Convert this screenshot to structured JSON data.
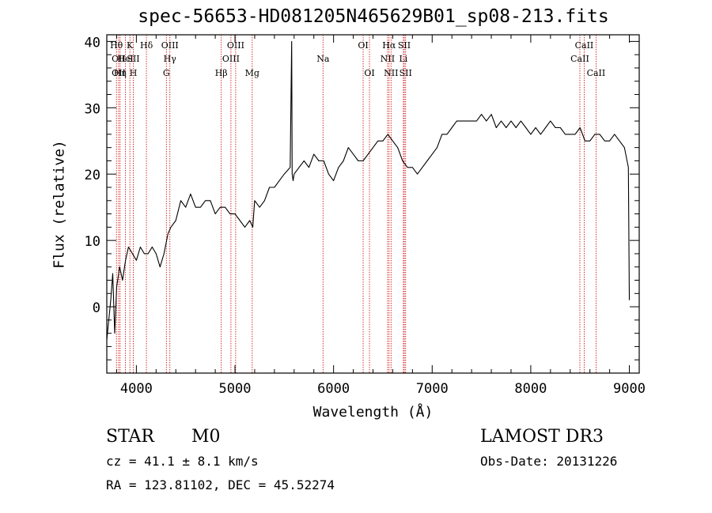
{
  "chart_data": {
    "type": "line",
    "title": "spec-56653-HD081205N465629B01_sp08-213.fits",
    "xlabel": "Wavelength (Å)",
    "ylabel": "Flux (relative)",
    "xlim": [
      3700,
      9100
    ],
    "ylim": [
      -10,
      41
    ],
    "x_ticks": [
      4000,
      5000,
      6000,
      7000,
      8000,
      9000
    ],
    "y_ticks": [
      0,
      10,
      20,
      30,
      40
    ],
    "grid": false,
    "series": [
      {
        "x": [
          3700,
          3740,
          3760,
          3780,
          3800,
          3830,
          3860,
          3890,
          3920,
          3960,
          4000,
          4040,
          4080,
          4120,
          4160,
          4200,
          4240,
          4280,
          4320,
          4350,
          4400,
          4450,
          4500,
          4550,
          4600,
          4650,
          4700,
          4750,
          4800,
          4850,
          4900,
          4950,
          5000,
          5050,
          5100,
          5150,
          5180,
          5200,
          5250,
          5300,
          5350,
          5400,
          5450,
          5500,
          5560,
          5575,
          5580,
          5590,
          5600,
          5650,
          5700,
          5750,
          5800,
          5850,
          5900,
          5950,
          6000,
          6050,
          6100,
          6150,
          6200,
          6250,
          6300,
          6350,
          6400,
          6450,
          6500,
          6550,
          6600,
          6650,
          6700,
          6750,
          6800,
          6850,
          6900,
          6950,
          7000,
          7050,
          7100,
          7150,
          7200,
          7250,
          7300,
          7350,
          7400,
          7450,
          7500,
          7550,
          7600,
          7650,
          7700,
          7750,
          7800,
          7850,
          7900,
          7950,
          8000,
          8050,
          8100,
          8150,
          8200,
          8250,
          8300,
          8350,
          8400,
          8450,
          8500,
          8550,
          8600,
          8650,
          8700,
          8750,
          8800,
          8850,
          8900,
          8950,
          8990,
          9000
        ],
        "y": [
          -5,
          1,
          5,
          -4,
          3,
          6,
          4,
          7,
          9,
          8,
          7,
          9,
          8,
          8,
          9,
          8,
          6,
          8,
          11,
          12,
          13,
          16,
          15,
          17,
          15,
          15,
          16,
          16,
          14,
          15,
          15,
          14,
          14,
          13,
          12,
          13,
          12,
          16,
          15,
          16,
          18,
          18,
          19,
          20,
          21,
          40,
          20,
          19,
          20,
          21,
          22,
          21,
          23,
          22,
          22,
          20,
          19,
          21,
          22,
          24,
          23,
          22,
          22,
          23,
          24,
          25,
          25,
          26,
          25,
          24,
          22,
          21,
          21,
          20,
          21,
          22,
          23,
          24,
          26,
          26,
          27,
          28,
          28,
          28,
          28,
          28,
          29,
          28,
          29,
          27,
          28,
          27,
          28,
          27,
          28,
          27,
          26,
          27,
          26,
          27,
          28,
          27,
          27,
          26,
          26,
          26,
          27,
          25,
          25,
          26,
          26,
          25,
          25,
          26,
          25,
          24,
          21,
          1
        ]
      }
    ],
    "line_markers": [
      {
        "x": 3798,
        "rows": [
          {
            "row": 0,
            "label": "Hθ"
          }
        ]
      },
      {
        "x": 3820,
        "rows": [
          {
            "row": 1,
            "label": "OII"
          },
          {
            "row": 2,
            "label": "OII"
          }
        ]
      },
      {
        "x": 3835,
        "rows": [
          {
            "row": 2,
            "label": "Hη"
          }
        ]
      },
      {
        "x": 3889,
        "rows": [
          {
            "row": 1,
            "label": "HeI"
          }
        ]
      },
      {
        "x": 3934,
        "rows": [
          {
            "row": 0,
            "label": "K"
          }
        ]
      },
      {
        "x": 3969,
        "rows": [
          {
            "row": 1,
            "label": "SII"
          },
          {
            "row": 2,
            "label": "H"
          }
        ]
      },
      {
        "x": 4102,
        "rows": [
          {
            "row": 0,
            "label": "Hδ"
          }
        ]
      },
      {
        "x": 4304,
        "rows": [
          {
            "row": 2,
            "label": "G"
          }
        ]
      },
      {
        "x": 4340,
        "rows": [
          {
            "row": 0,
            "label": "OIII"
          },
          {
            "row": 1,
            "label": "Hγ"
          }
        ]
      },
      {
        "x": 4861,
        "rows": [
          {
            "row": 2,
            "label": "Hβ"
          }
        ]
      },
      {
        "x": 4959,
        "rows": [
          {
            "row": 1,
            "label": "OIII"
          }
        ]
      },
      {
        "x": 5007,
        "rows": [
          {
            "row": 0,
            "label": "OIII"
          }
        ]
      },
      {
        "x": 5175,
        "rows": [
          {
            "row": 2,
            "label": "Mg"
          }
        ]
      },
      {
        "x": 5893,
        "rows": [
          {
            "row": 1,
            "label": "Na"
          }
        ]
      },
      {
        "x": 6300,
        "rows": [
          {
            "row": 0,
            "label": "OI"
          }
        ]
      },
      {
        "x": 6364,
        "rows": [
          {
            "row": 2,
            "label": "OI"
          }
        ]
      },
      {
        "x": 6548,
        "rows": [
          {
            "row": 1,
            "label": "NII"
          }
        ]
      },
      {
        "x": 6563,
        "rows": [
          {
            "row": 0,
            "label": "Hα"
          }
        ]
      },
      {
        "x": 6583,
        "rows": [
          {
            "row": 2,
            "label": "NII"
          }
        ]
      },
      {
        "x": 6708,
        "rows": [
          {
            "row": 1,
            "label": "Li"
          }
        ]
      },
      {
        "x": 6717,
        "rows": [
          {
            "row": 0,
            "label": "SII"
          }
        ]
      },
      {
        "x": 6731,
        "rows": [
          {
            "row": 2,
            "label": "SII"
          }
        ]
      },
      {
        "x": 8498,
        "rows": [
          {
            "row": 1,
            "label": "CaII"
          }
        ]
      },
      {
        "x": 8542,
        "rows": [
          {
            "row": 0,
            "label": "CaII"
          }
        ]
      },
      {
        "x": 8662,
        "rows": [
          {
            "row": 2,
            "label": "CaII"
          }
        ]
      }
    ],
    "colors": {
      "spectrum": "#000000",
      "marker_line": "#cc0000",
      "axis": "#000000"
    }
  },
  "info": {
    "class_label": "STAR",
    "subclass": "M0",
    "survey": "LAMOST DR3",
    "cz_line": "cz = 41.1 ± 8.1 km/s",
    "obs_date_line": "Obs-Date: 20131226",
    "radec_line": "RA = 123.81102, DEC =  45.52274"
  }
}
